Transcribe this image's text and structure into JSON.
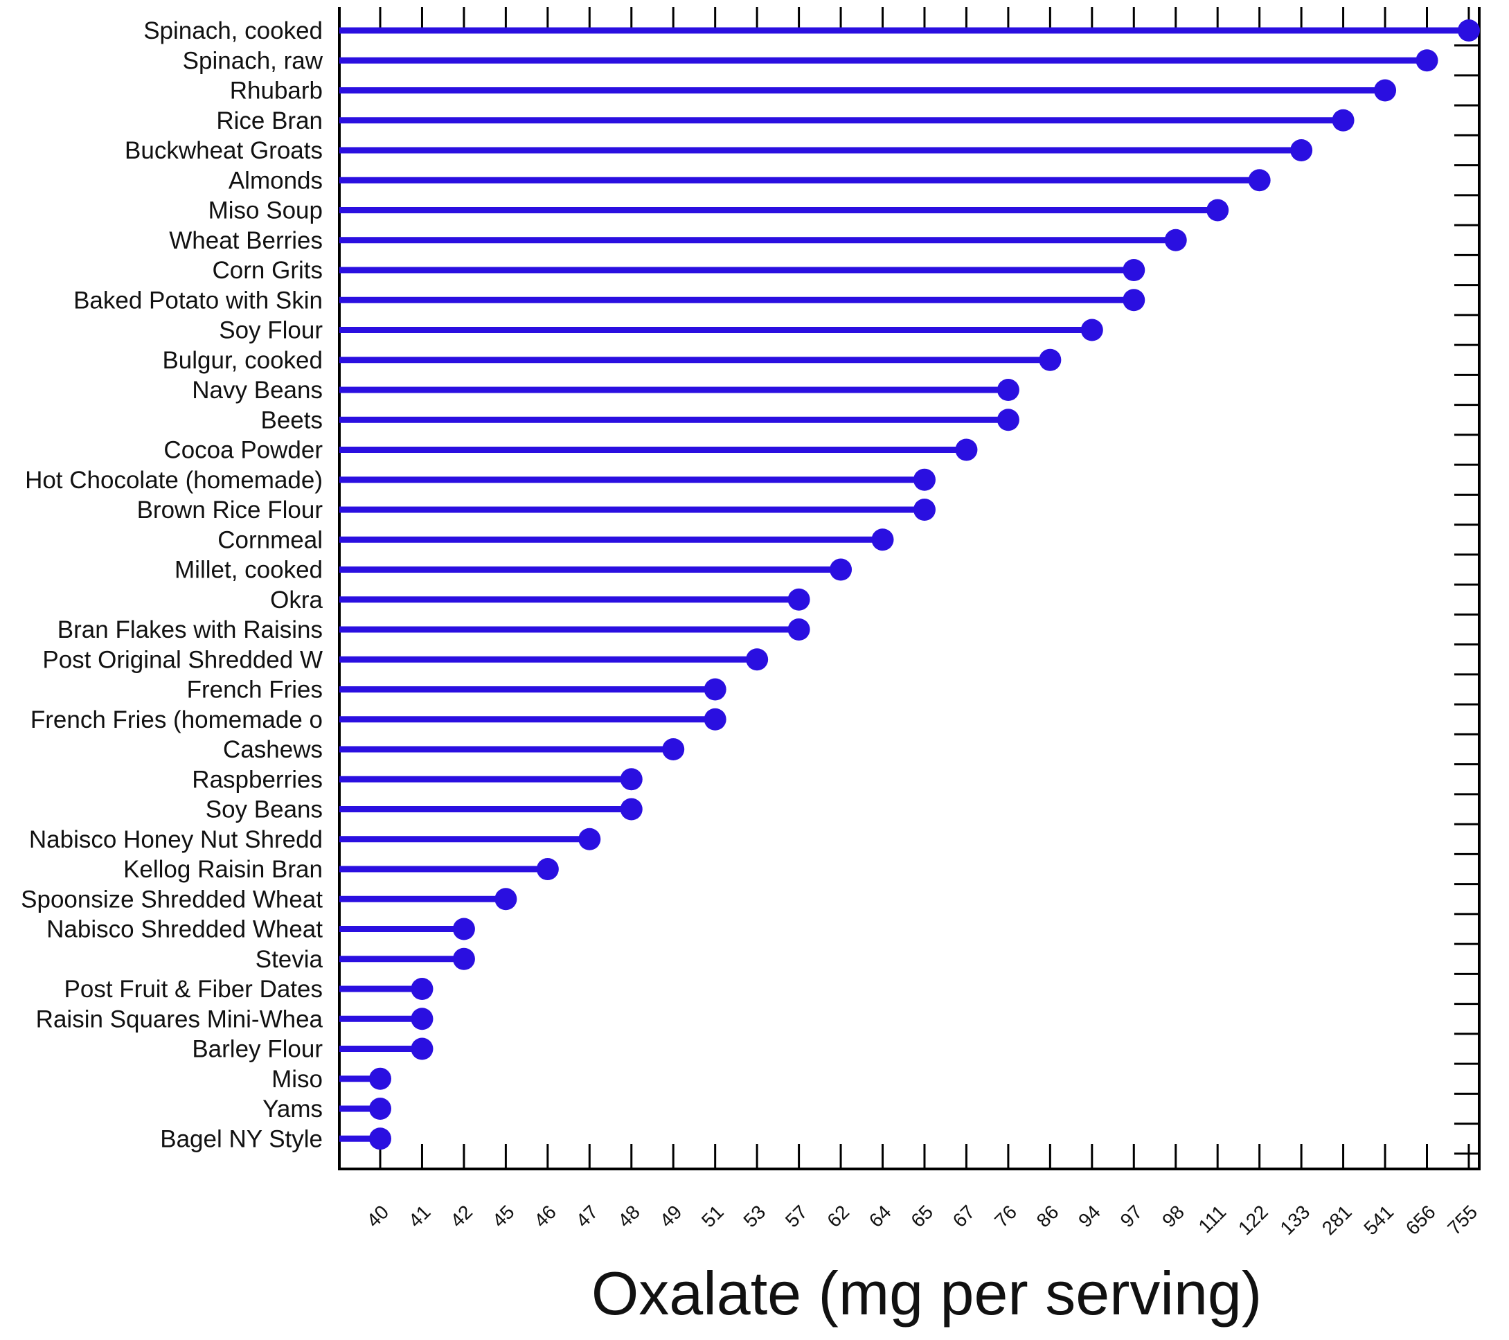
{
  "chart_data": {
    "type": "lollipop",
    "orientation": "horizontal",
    "xlabel": "Oxalate (mg per serving)",
    "x_axis_scale": "ordinal (distinct values, equally spaced)",
    "x_ticks": [
      "40",
      "41",
      "42",
      "45",
      "46",
      "47",
      "48",
      "49",
      "51",
      "53",
      "57",
      "62",
      "64",
      "65",
      "67",
      "76",
      "86",
      "94",
      "97",
      "98",
      "111",
      "122",
      "133",
      "281",
      "541",
      "656",
      "755"
    ],
    "categories": [
      "Spinach, cooked",
      "Spinach, raw",
      "Rhubarb",
      "Rice Bran",
      "Buckwheat Groats",
      "Almonds",
      "Miso Soup",
      "Wheat Berries",
      "Corn Grits",
      "Baked Potato with Skin",
      "Soy Flour",
      "Bulgur, cooked",
      "Navy Beans",
      "Beets",
      "Cocoa Powder",
      "Hot Chocolate (homemade)",
      "Brown Rice Flour",
      "Cornmeal",
      "Millet, cooked",
      "Okra",
      "Bran Flakes with Raisins",
      "Post Original Shredded W",
      "French Fries",
      "French Fries (homemade o",
      "Cashews",
      "Raspberries",
      "Soy Beans",
      "Nabisco Honey Nut Shredd",
      "Kellog Raisin Bran",
      "Spoonsize Shredded Wheat",
      "Nabisco Shredded Wheat",
      "Stevia",
      "Post Fruit & Fiber Dates",
      "Raisin Squares Mini-Whea",
      "Barley Flour",
      "Miso",
      "Yams",
      "Bagel NY Style"
    ],
    "values": [
      755,
      656,
      541,
      281,
      133,
      122,
      111,
      98,
      97,
      97,
      94,
      86,
      76,
      76,
      67,
      65,
      65,
      64,
      62,
      57,
      57,
      53,
      51,
      51,
      49,
      48,
      48,
      47,
      46,
      45,
      42,
      42,
      41,
      41,
      41,
      40,
      40,
      40
    ],
    "colors": {
      "mark": "#2a0fe0",
      "axis": "#000000",
      "background": "#ffffff"
    },
    "grid": false,
    "legend": "none"
  }
}
